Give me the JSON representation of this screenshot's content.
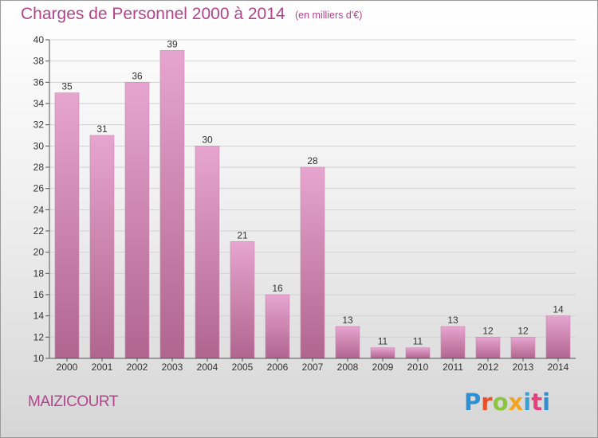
{
  "title": "Charges de Personnel 2000 à 2014",
  "subtitle": "(en milliers d'€)",
  "commune": "MAIZICOURT",
  "logo": {
    "letters": [
      "P",
      "r",
      "o",
      "x",
      "i",
      "t",
      "i"
    ]
  },
  "colors": {
    "bar_top": "#e6a5cf",
    "bar_bottom": "#b0658f",
    "title": "#b0458c"
  },
  "chart_data": {
    "type": "bar",
    "categories": [
      "2000",
      "2001",
      "2002",
      "2003",
      "2004",
      "2005",
      "2006",
      "2007",
      "2008",
      "2009",
      "2010",
      "2011",
      "2012",
      "2013",
      "2014"
    ],
    "values": [
      35,
      31,
      36,
      39,
      30,
      21,
      16,
      28,
      13,
      11,
      11,
      13,
      12,
      12,
      14
    ],
    "title": "Charges de Personnel 2000 à 2014",
    "ylim": [
      10,
      40
    ],
    "yticks": [
      10,
      12,
      14,
      16,
      18,
      20,
      22,
      24,
      26,
      28,
      30,
      32,
      34,
      36,
      38,
      40
    ],
    "grid": true
  }
}
